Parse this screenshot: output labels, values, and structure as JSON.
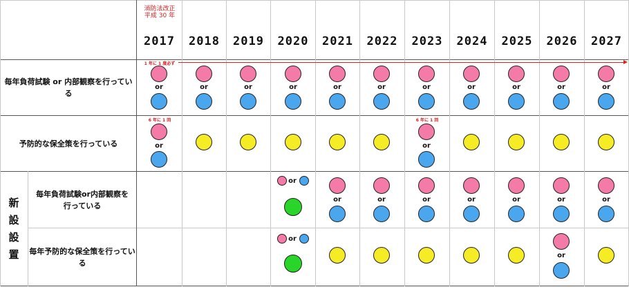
{
  "header": {
    "revision_note": [
      "消防法改正",
      "平成 30 年"
    ],
    "years": [
      "2017",
      "2018",
      "2019",
      "2020",
      "2021",
      "2022",
      "2023",
      "2024",
      "2025",
      "2026",
      "2027"
    ]
  },
  "rows": {
    "annual_test": {
      "label": "毎年負荷試験 or 内部観察を行っている",
      "note_2017": "1 年に 1 度必ず"
    },
    "preventive": {
      "label": "予防的な保全策を行っている",
      "note_2017": "6 年に 1 回",
      "note_2023": "6 年に 1 回"
    },
    "new_group_label": [
      "新",
      "設",
      "設",
      "置"
    ],
    "new_annual_test": {
      "label_line1": "毎年負荷試験or内部観察を",
      "label_line2": "行っている"
    },
    "new_preventive": {
      "label": "毎年予防的な保全策を行っている"
    }
  },
  "or_text": "or",
  "colors": {
    "pink": "#f47aa8",
    "blue": "#4aa7ee",
    "yellow": "#f5ec26",
    "green": "#2ad52a",
    "red": "#d42020"
  }
}
